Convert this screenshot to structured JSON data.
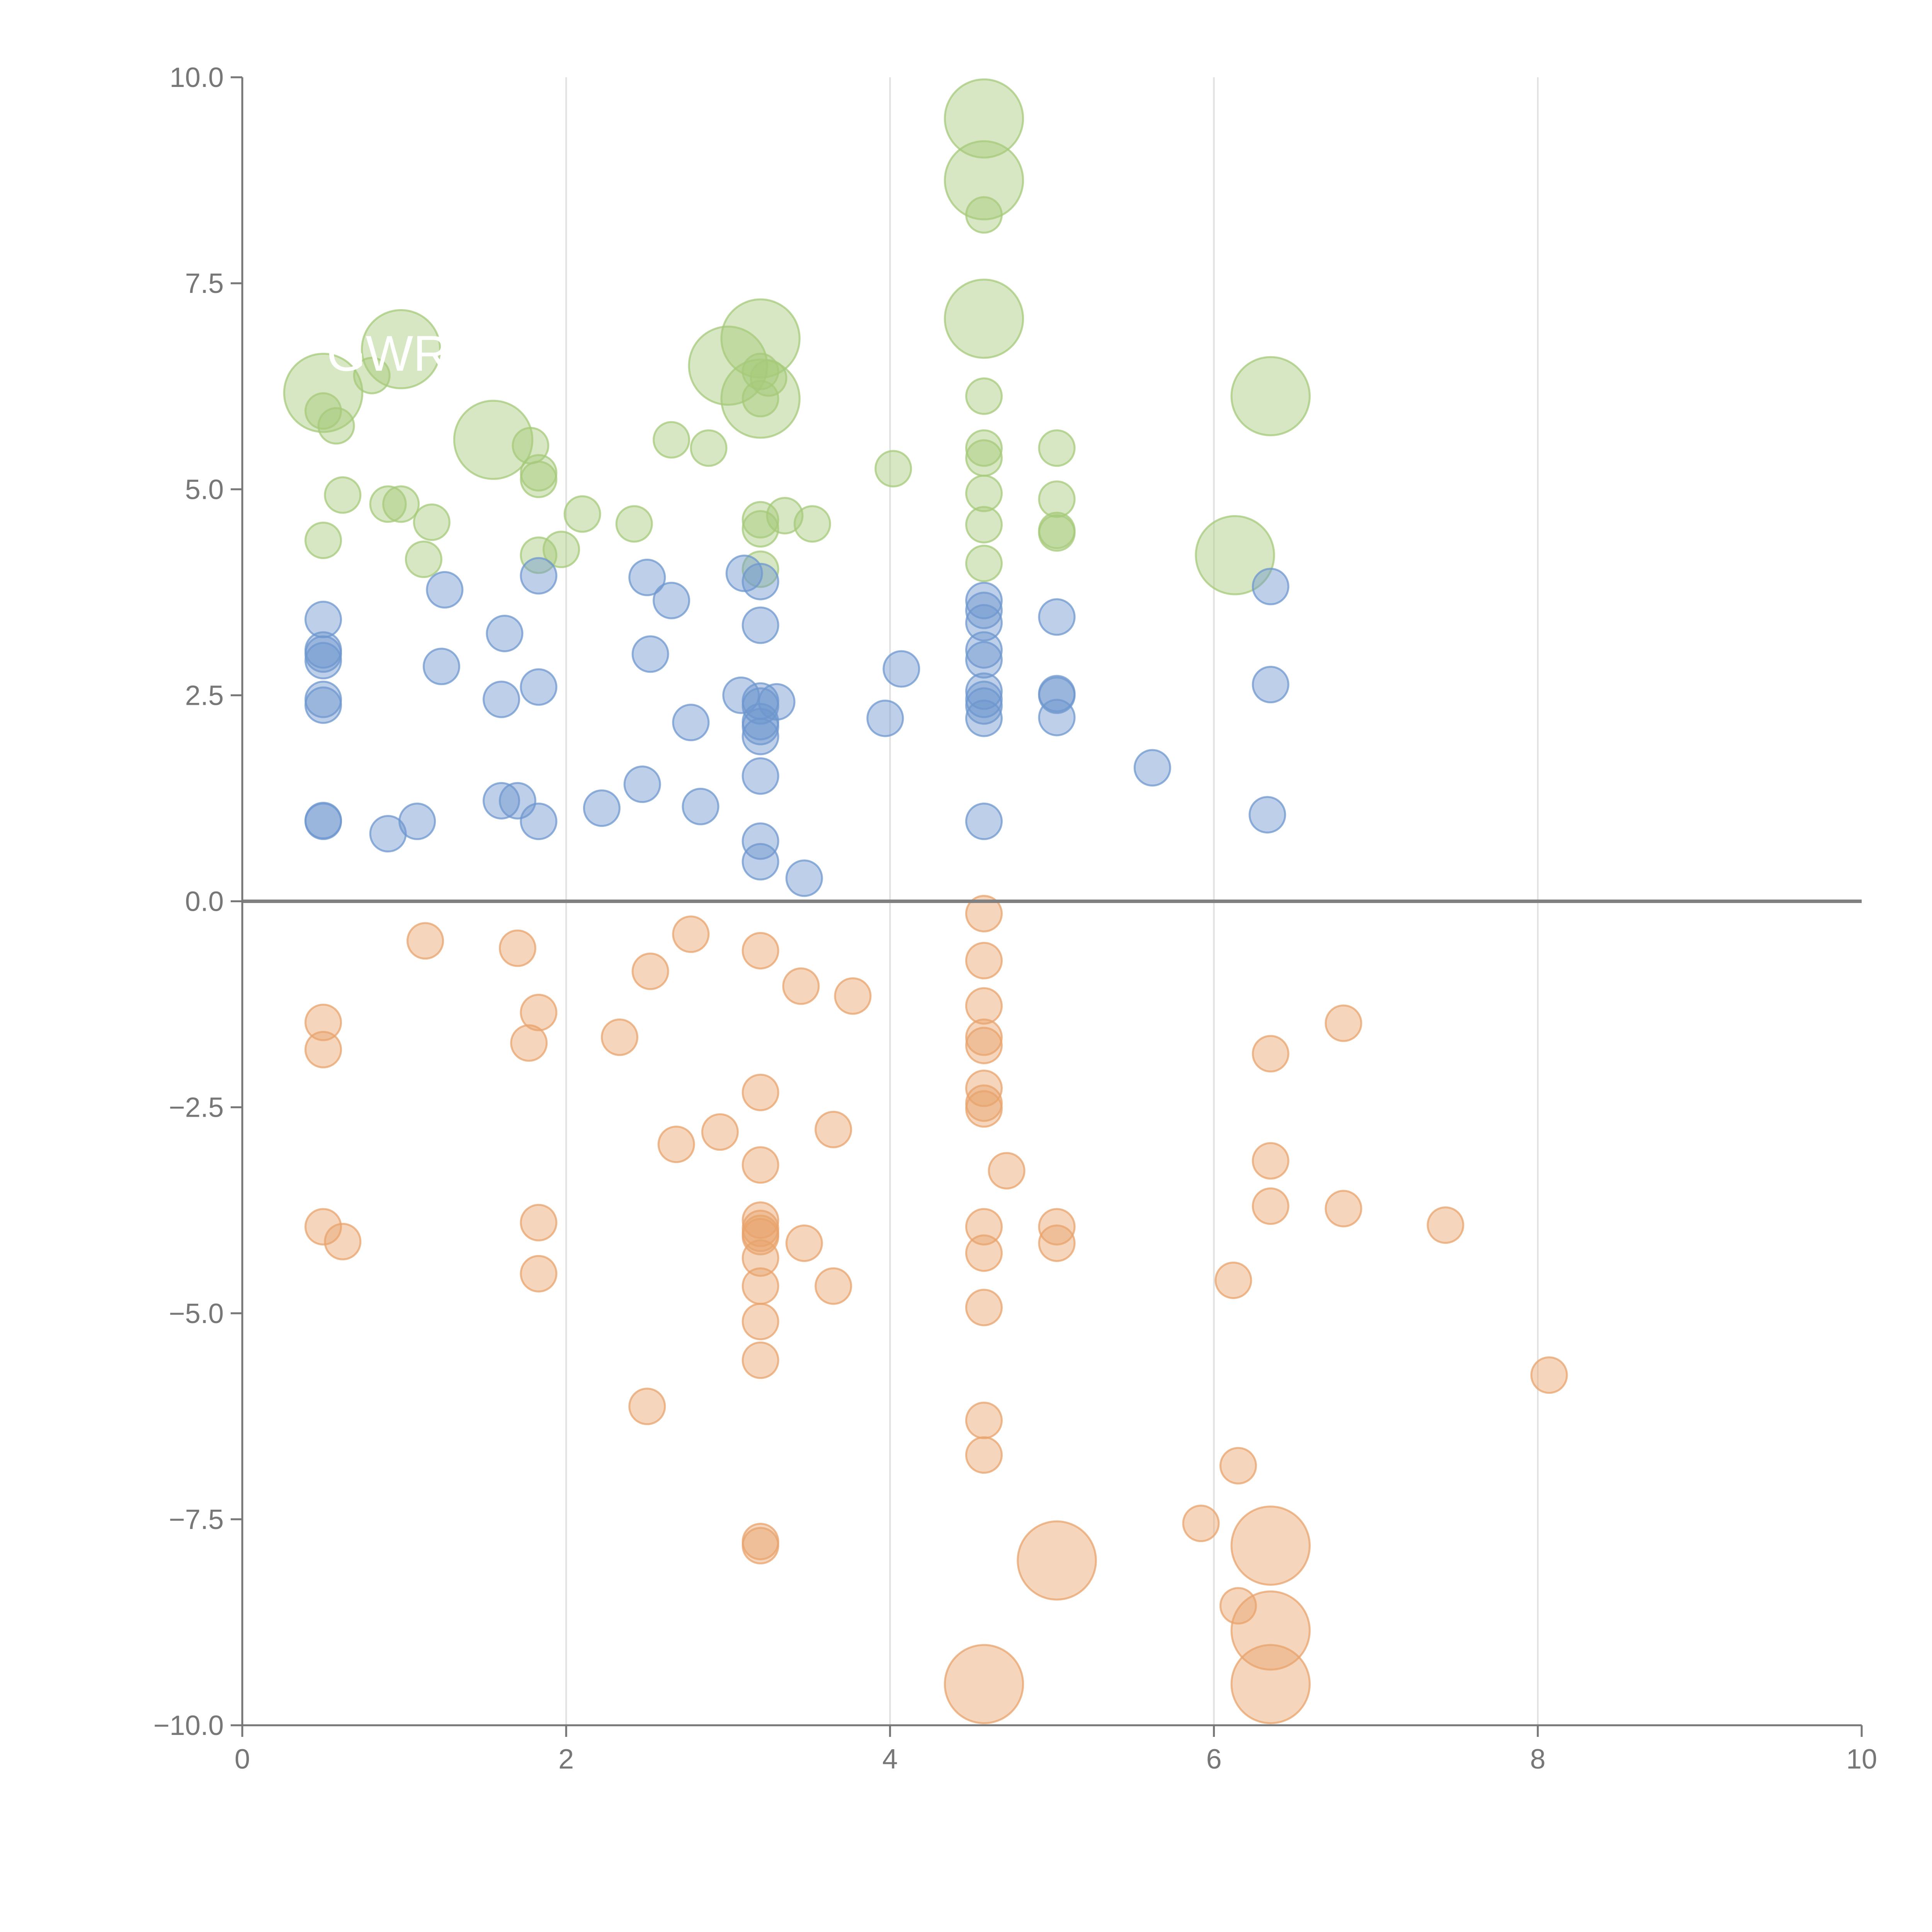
{
  "chart_data": {
    "type": "scatter",
    "title": "",
    "xlabel": "",
    "ylabel": "",
    "xlim": [
      0,
      10
    ],
    "ylim": [
      -10,
      10
    ],
    "grid": "vertical at x ticks",
    "x_ticks": [
      0,
      2,
      4,
      6,
      8,
      10
    ],
    "y_ticks": [
      -10,
      -7.5,
      -5,
      -2.5,
      0,
      2.5,
      5,
      7.5,
      10
    ],
    "x_tick_labels": [
      "0",
      "2",
      "4",
      "6",
      "8",
      "10"
    ],
    "y_tick_labels": [
      "−10.0",
      "−7.5",
      "−5.0",
      "−2.5",
      "0.0",
      "2.5",
      "5.0",
      "7.5",
      "10.0"
    ],
    "colors": {
      "green": "#a6c97a",
      "blue": "#6e97cf",
      "orange": "#e8a36c",
      "axis": "#777777",
      "zero_line": "#808080",
      "grid": "#e0e0e0",
      "label": "#ffffff"
    },
    "series": [
      {
        "name": "green",
        "points": [
          [
            4.58,
            9.5,
            2.2
          ],
          [
            4.58,
            8.75,
            2.2
          ],
          [
            4.58,
            8.33,
            1
          ],
          [
            4.58,
            7.07,
            2.2
          ],
          [
            3.2,
            6.83,
            2.2
          ],
          [
            3.2,
            6.1,
            2.2
          ],
          [
            3.0,
            6.5,
            2.2
          ],
          [
            0.98,
            6.7,
            2.2
          ],
          [
            0.5,
            6.17,
            2.2
          ],
          [
            1.55,
            5.6,
            2.2
          ],
          [
            6.35,
            6.13,
            2.2
          ],
          [
            6.13,
            4.2,
            2.2
          ],
          [
            0.8,
            6.38,
            1
          ],
          [
            0.5,
            5.95,
            1
          ],
          [
            0.58,
            5.77,
            1
          ],
          [
            4.58,
            6.13,
            1
          ],
          [
            3.2,
            6.43,
            1
          ],
          [
            3.25,
            6.35,
            1
          ],
          [
            3.2,
            6.1,
            1
          ],
          [
            2.65,
            5.6,
            1
          ],
          [
            2.88,
            5.5,
            1
          ],
          [
            1.78,
            5.53,
            1
          ],
          [
            1.83,
            5.2,
            1
          ],
          [
            1.83,
            5.12,
            1
          ],
          [
            4.58,
            5.5,
            1
          ],
          [
            4.58,
            5.38,
            1
          ],
          [
            5.03,
            5.5,
            1
          ],
          [
            4.02,
            5.25,
            1
          ],
          [
            0.62,
            4.93,
            1
          ],
          [
            0.9,
            4.82,
            1
          ],
          [
            0.98,
            4.82,
            1
          ],
          [
            1.17,
            4.6,
            1
          ],
          [
            2.1,
            4.7,
            1
          ],
          [
            2.42,
            4.58,
            1
          ],
          [
            3.2,
            4.63,
            1
          ],
          [
            3.2,
            4.52,
            1
          ],
          [
            3.35,
            4.68,
            1
          ],
          [
            3.52,
            4.58,
            1
          ],
          [
            4.58,
            4.95,
            1
          ],
          [
            4.58,
            4.57,
            1
          ],
          [
            5.03,
            4.88,
            1
          ],
          [
            5.03,
            4.5,
            1
          ],
          [
            5.03,
            4.47,
            1
          ],
          [
            0.5,
            4.38,
            1
          ],
          [
            1.12,
            4.15,
            1
          ],
          [
            1.83,
            4.2,
            1
          ],
          [
            1.97,
            4.27,
            1
          ],
          [
            3.2,
            4.03,
            1
          ],
          [
            4.58,
            4.1,
            1
          ]
        ]
      },
      {
        "name": "blue",
        "points": [
          [
            1.83,
            3.95,
            1
          ],
          [
            2.5,
            3.93,
            1
          ],
          [
            3.1,
            3.98,
            1
          ],
          [
            3.2,
            3.88,
            1
          ],
          [
            1.25,
            3.78,
            1
          ],
          [
            2.65,
            3.65,
            1
          ],
          [
            4.58,
            3.65,
            1
          ],
          [
            4.58,
            3.53,
            1
          ],
          [
            6.35,
            3.82,
            1
          ],
          [
            5.03,
            3.45,
            1
          ],
          [
            0.5,
            3.42,
            1
          ],
          [
            3.2,
            3.35,
            1
          ],
          [
            4.58,
            3.38,
            1
          ],
          [
            1.62,
            3.25,
            1
          ],
          [
            0.5,
            3.05,
            1
          ],
          [
            0.5,
            3.0,
            1
          ],
          [
            0.5,
            2.92,
            1
          ],
          [
            2.52,
            3.0,
            1
          ],
          [
            4.58,
            3.05,
            1
          ],
          [
            4.58,
            2.93,
            1
          ],
          [
            1.23,
            2.85,
            1
          ],
          [
            4.07,
            2.82,
            1
          ],
          [
            1.83,
            2.6,
            1
          ],
          [
            6.35,
            2.63,
            1
          ],
          [
            3.08,
            2.5,
            1
          ],
          [
            5.03,
            2.52,
            1
          ],
          [
            5.03,
            2.5,
            1
          ],
          [
            0.5,
            2.45,
            1
          ],
          [
            0.5,
            2.38,
            1
          ],
          [
            1.6,
            2.45,
            1
          ],
          [
            3.2,
            2.43,
            1
          ],
          [
            3.2,
            2.37,
            1
          ],
          [
            3.3,
            2.42,
            1
          ],
          [
            4.58,
            2.55,
            1
          ],
          [
            4.58,
            2.45,
            1
          ],
          [
            4.58,
            2.37,
            1
          ],
          [
            4.58,
            2.22,
            1
          ],
          [
            2.77,
            2.17,
            1
          ],
          [
            3.2,
            2.18,
            1
          ],
          [
            3.2,
            2.12,
            1
          ],
          [
            3.2,
            2.0,
            1
          ],
          [
            3.97,
            2.22,
            1
          ],
          [
            5.03,
            2.23,
            1
          ],
          [
            5.62,
            1.62,
            1
          ],
          [
            2.47,
            1.42,
            1
          ],
          [
            3.2,
            1.52,
            1
          ],
          [
            1.6,
            1.22,
            1
          ],
          [
            1.7,
            1.22,
            1
          ],
          [
            2.22,
            1.13,
            1
          ],
          [
            2.83,
            1.15,
            1
          ],
          [
            6.33,
            1.05,
            1
          ],
          [
            0.5,
            0.98,
            1
          ],
          [
            0.5,
            0.97,
            1
          ],
          [
            1.08,
            0.97,
            1
          ],
          [
            1.83,
            0.97,
            1
          ],
          [
            4.58,
            0.97,
            1
          ],
          [
            0.9,
            0.82,
            1
          ],
          [
            3.2,
            0.73,
            1
          ],
          [
            3.2,
            0.48,
            1
          ],
          [
            3.47,
            0.28,
            1
          ]
        ]
      },
      {
        "name": "orange",
        "points": [
          [
            4.58,
            -0.15,
            1
          ],
          [
            2.77,
            -0.4,
            1
          ],
          [
            1.13,
            -0.48,
            1
          ],
          [
            1.7,
            -0.57,
            1
          ],
          [
            3.2,
            -0.6,
            1
          ],
          [
            4.58,
            -0.72,
            1
          ],
          [
            2.52,
            -0.85,
            1
          ],
          [
            3.45,
            -1.03,
            1
          ],
          [
            3.77,
            -1.15,
            1
          ],
          [
            4.58,
            -1.27,
            1
          ],
          [
            1.83,
            -1.35,
            1
          ],
          [
            0.5,
            -1.47,
            1
          ],
          [
            6.8,
            -1.48,
            1
          ],
          [
            2.33,
            -1.65,
            1
          ],
          [
            4.58,
            -1.65,
            1
          ],
          [
            1.77,
            -1.72,
            1
          ],
          [
            4.58,
            -1.75,
            1
          ],
          [
            0.5,
            -1.8,
            1
          ],
          [
            6.35,
            -1.85,
            1
          ],
          [
            4.58,
            -2.27,
            1
          ],
          [
            3.2,
            -2.32,
            1
          ],
          [
            4.58,
            -2.45,
            1
          ],
          [
            4.58,
            -2.52,
            1
          ],
          [
            2.95,
            -2.8,
            1
          ],
          [
            3.65,
            -2.77,
            1
          ],
          [
            2.68,
            -2.95,
            1
          ],
          [
            3.2,
            -3.2,
            1
          ],
          [
            6.35,
            -3.15,
            1
          ],
          [
            4.72,
            -3.27,
            1
          ],
          [
            6.35,
            -3.7,
            1
          ],
          [
            6.8,
            -3.73,
            1
          ],
          [
            0.5,
            -3.95,
            1
          ],
          [
            1.83,
            -3.9,
            1
          ],
          [
            3.2,
            -3.87,
            1
          ],
          [
            3.2,
            -3.97,
            1
          ],
          [
            3.2,
            -4.03,
            1
          ],
          [
            3.2,
            -4.07,
            1
          ],
          [
            4.58,
            -3.95,
            1
          ],
          [
            5.03,
            -3.95,
            1
          ],
          [
            7.43,
            -3.93,
            1
          ],
          [
            0.62,
            -4.13,
            1
          ],
          [
            3.47,
            -4.15,
            1
          ],
          [
            5.03,
            -4.15,
            1
          ],
          [
            3.2,
            -4.33,
            1
          ],
          [
            4.58,
            -4.27,
            1
          ],
          [
            1.83,
            -4.52,
            1
          ],
          [
            6.12,
            -4.6,
            1
          ],
          [
            3.2,
            -4.67,
            1
          ],
          [
            3.65,
            -4.67,
            1
          ],
          [
            4.58,
            -4.93,
            1
          ],
          [
            3.2,
            -5.1,
            1
          ],
          [
            3.2,
            -5.57,
            1
          ],
          [
            8.07,
            -5.75,
            1
          ],
          [
            2.5,
            -6.13,
            1
          ],
          [
            4.58,
            -6.3,
            1
          ],
          [
            4.58,
            -6.72,
            1
          ],
          [
            6.15,
            -6.85,
            1
          ],
          [
            5.92,
            -7.55,
            1
          ],
          [
            3.2,
            -7.77,
            1
          ],
          [
            3.2,
            -7.82,
            1
          ],
          [
            6.35,
            -7.82,
            2.2
          ],
          [
            5.03,
            -8.0,
            2.2
          ],
          [
            6.15,
            -8.55,
            1
          ],
          [
            6.35,
            -8.85,
            2.2
          ],
          [
            4.58,
            -9.5,
            2.2
          ],
          [
            6.35,
            -9.5,
            2.2
          ]
        ]
      }
    ],
    "point_labels": [
      {
        "text": "GWR",
        "x": 0.9,
        "y": 6.65
      }
    ]
  }
}
